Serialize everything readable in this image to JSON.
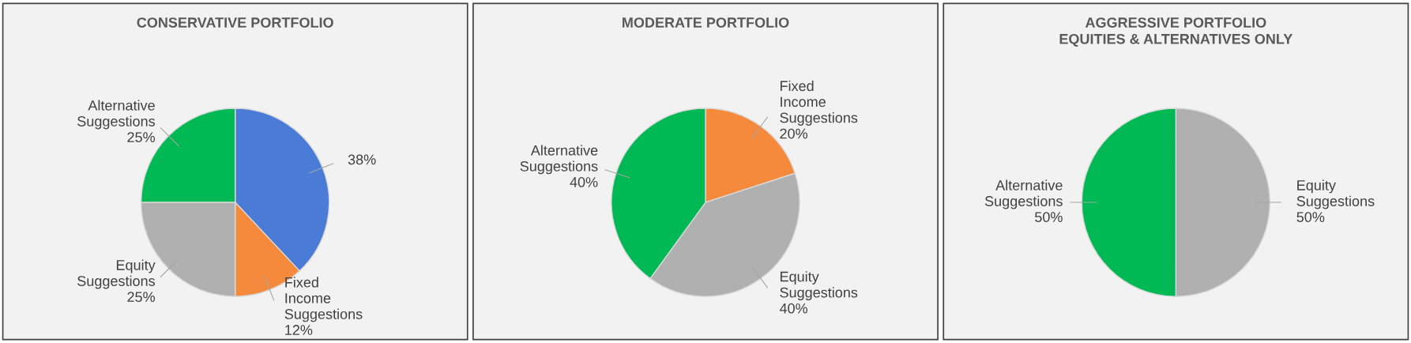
{
  "chart_data": [
    {
      "type": "pie",
      "title": "CONSERVATIVE PORTFOLIO",
      "categories": [
        null,
        "Fixed\nIncome\nSuggestions",
        "Equity\nSuggestions",
        "Alternative\nSuggestions"
      ],
      "values": [
        38,
        12,
        25,
        25
      ],
      "value_labels": [
        "38%",
        "12%",
        "25%",
        "25%"
      ],
      "colors": [
        "#4a7bd6",
        "#f58a3c",
        "#b0b0b0",
        "#00b854"
      ]
    },
    {
      "type": "pie",
      "title": "MODERATE PORTFOLIO",
      "categories": [
        "Fixed\nIncome\nSuggestions",
        "Equity\nSuggestions",
        "Alternative\nSuggestions"
      ],
      "values": [
        20,
        40,
        40
      ],
      "value_labels": [
        "20%",
        "40%",
        "40%"
      ],
      "colors": [
        "#f58a3c",
        "#b0b0b0",
        "#00b854"
      ]
    },
    {
      "type": "pie",
      "title": "AGGRESSIVE PORTFOLIO\nEQUITIES & ALTERNATIVES ONLY",
      "categories": [
        "Equity\nSuggestions",
        "Alternative\nSuggestions"
      ],
      "values": [
        50,
        50
      ],
      "value_labels": [
        "50%",
        "50%"
      ],
      "colors": [
        "#b0b0b0",
        "#00b854"
      ]
    }
  ]
}
